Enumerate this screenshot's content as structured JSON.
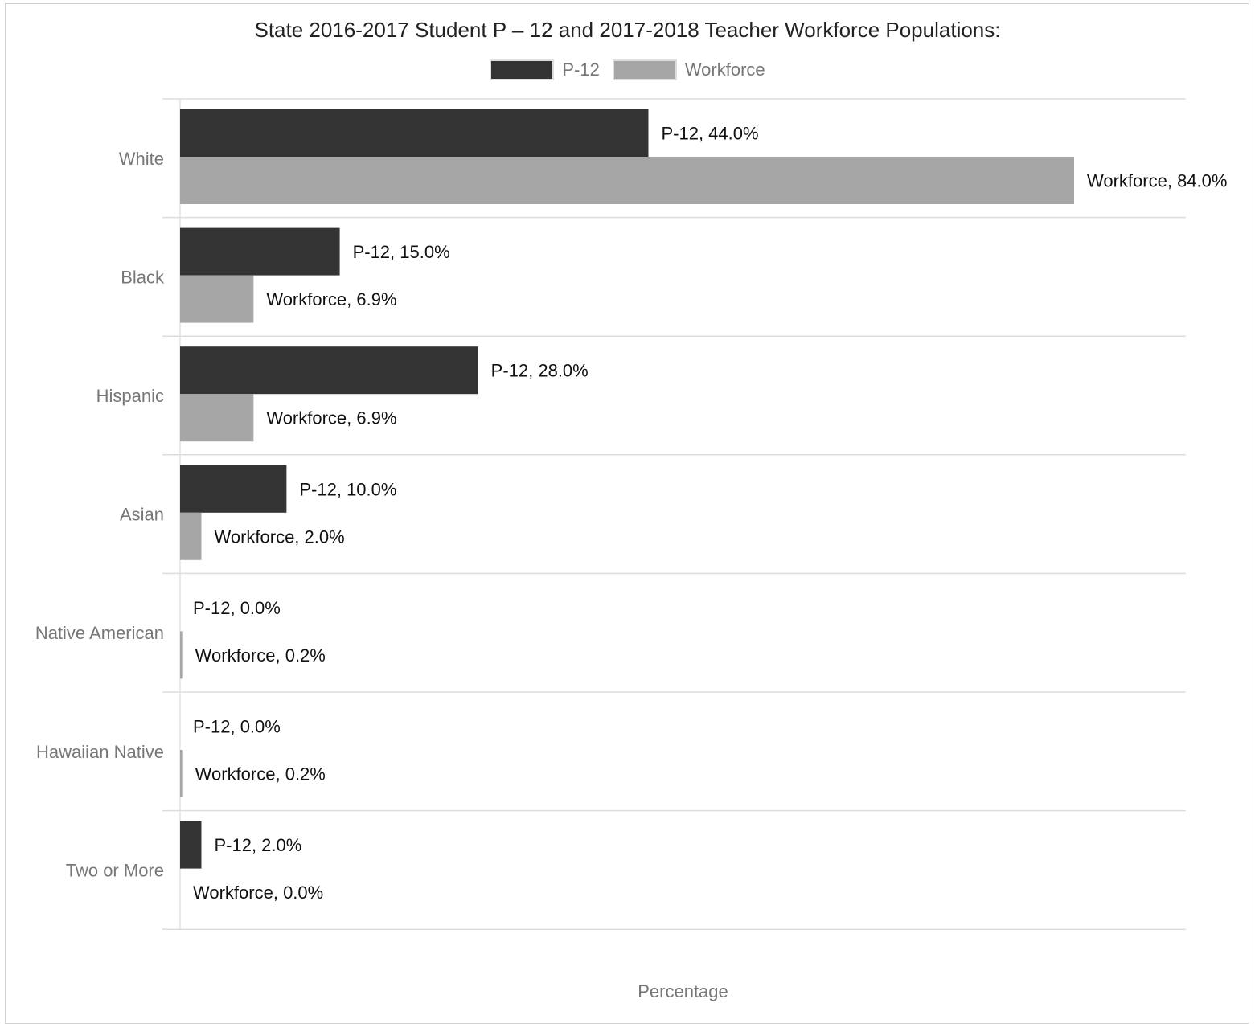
{
  "chart_data": {
    "type": "bar",
    "orientation": "horizontal",
    "title": "State 2016-2017 Student P – 12 and 2017-2018 Teacher Workforce Populations:",
    "xlabel": "Percentage",
    "ylabel": "",
    "xlim": [
      0,
      100
    ],
    "grid": true,
    "legend_position": "top",
    "categories": [
      "White",
      "Black",
      "Hispanic",
      "Asian",
      "Native American",
      "Hawaiian Native",
      "Two or More"
    ],
    "series": [
      {
        "name": "P-12",
        "color": "#333333",
        "values": [
          44.0,
          15.0,
          28.0,
          10.0,
          0.0,
          0.0,
          2.0
        ],
        "labels": [
          "P-12, 44.0%",
          "P-12, 15.0%",
          "P-12, 28.0%",
          "P-12, 10.0%",
          "P-12, 0.0%",
          "P-12, 0.0%",
          "P-12, 2.0%"
        ]
      },
      {
        "name": "Workforce",
        "color": "#a6a6a6",
        "values": [
          84.0,
          6.9,
          6.9,
          2.0,
          0.2,
          0.2,
          0.0
        ],
        "labels": [
          "Workforce, 84.0%",
          "Workforce, 6.9%",
          "Workforce, 6.9%",
          "Workforce, 2.0%",
          "Workforce, 0.2%",
          "Workforce, 0.2%",
          "Workforce, 0.0%"
        ]
      }
    ]
  }
}
